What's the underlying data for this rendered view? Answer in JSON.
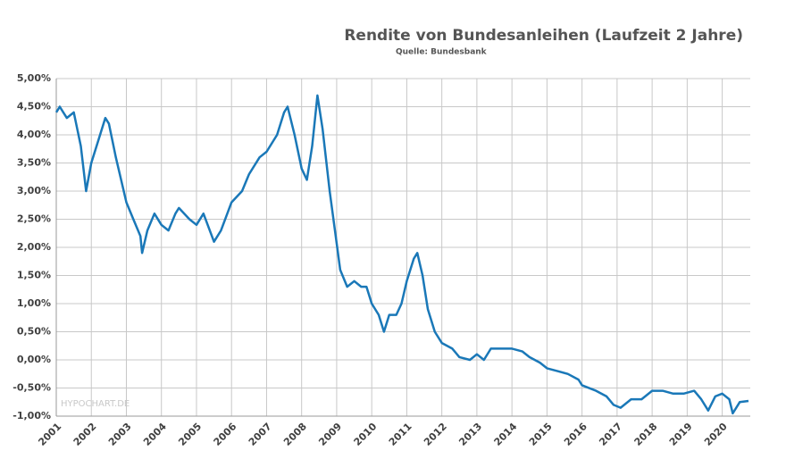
{
  "chart_data": {
    "type": "line",
    "title": "Rendite von Bundesanleihen (Laufzeit 2 Jahre)",
    "subtitle": "Quelle: Bundesbank",
    "watermark": "HYPOCHART.DE",
    "x": [
      2001.0,
      2001.1,
      2001.3,
      2001.5,
      2001.7,
      2001.85,
      2002.0,
      2002.2,
      2002.4,
      2002.5,
      2002.7,
      2002.85,
      2003.0,
      2003.2,
      2003.4,
      2003.45,
      2003.6,
      2003.8,
      2004.0,
      2004.2,
      2004.4,
      2004.5,
      2004.8,
      2005.0,
      2005.2,
      2005.5,
      2005.7,
      2006.0,
      2006.3,
      2006.5,
      2006.8,
      2007.0,
      2007.3,
      2007.5,
      2007.6,
      2007.8,
      2008.0,
      2008.15,
      2008.3,
      2008.45,
      2008.6,
      2008.8,
      2008.95,
      2009.1,
      2009.3,
      2009.5,
      2009.7,
      2009.85,
      2010.0,
      2010.2,
      2010.35,
      2010.5,
      2010.7,
      2010.85,
      2011.0,
      2011.2,
      2011.3,
      2011.45,
      2011.6,
      2011.8,
      2012.0,
      2012.3,
      2012.5,
      2012.8,
      2013.0,
      2013.2,
      2013.4,
      2013.7,
      2014.0,
      2014.3,
      2014.5,
      2014.8,
      2015.0,
      2015.3,
      2015.6,
      2015.9,
      2016.0,
      2016.4,
      2016.7,
      2016.9,
      2017.1,
      2017.4,
      2017.7,
      2018.0,
      2018.3,
      2018.6,
      2018.9,
      2019.2,
      2019.4,
      2019.6,
      2019.8,
      2020.0,
      2020.2,
      2020.3,
      2020.5,
      2020.75
    ],
    "series": [
      {
        "name": "Rendite",
        "color": "#1a78b8",
        "values": [
          4.4,
          4.5,
          4.3,
          4.4,
          3.8,
          3.0,
          3.5,
          3.9,
          4.3,
          4.2,
          3.6,
          3.2,
          2.8,
          2.5,
          2.2,
          1.9,
          2.3,
          2.6,
          2.4,
          2.3,
          2.6,
          2.7,
          2.5,
          2.4,
          2.6,
          2.1,
          2.3,
          2.8,
          3.0,
          3.3,
          3.6,
          3.7,
          4.0,
          4.4,
          4.5,
          4.0,
          3.4,
          3.2,
          3.8,
          4.7,
          4.1,
          3.0,
          2.3,
          1.6,
          1.3,
          1.4,
          1.3,
          1.3,
          1.0,
          0.8,
          0.5,
          0.8,
          0.8,
          1.0,
          1.4,
          1.8,
          1.9,
          1.5,
          0.9,
          0.5,
          0.3,
          0.2,
          0.05,
          0.0,
          0.1,
          0.0,
          0.2,
          0.2,
          0.2,
          0.15,
          0.05,
          -0.05,
          -0.15,
          -0.2,
          -0.25,
          -0.35,
          -0.45,
          -0.55,
          -0.65,
          -0.8,
          -0.85,
          -0.7,
          -0.7,
          -0.55,
          -0.55,
          -0.6,
          -0.6,
          -0.55,
          -0.7,
          -0.9,
          -0.65,
          -0.6,
          -0.7,
          -0.95,
          -0.75,
          -0.73
        ]
      }
    ],
    "xlim": [
      2001,
      2020.8
    ],
    "xticks": [
      2001,
      2002,
      2003,
      2004,
      2005,
      2006,
      2007,
      2008,
      2009,
      2010,
      2011,
      2012,
      2013,
      2014,
      2015,
      2016,
      2017,
      2018,
      2019,
      2020
    ],
    "ylim": [
      -1,
      5
    ],
    "yticks": [
      {
        "value": -1,
        "label": "-1,00%"
      },
      {
        "value": -0.5,
        "label": "-0,50%"
      },
      {
        "value": 0,
        "label": "0,00%"
      },
      {
        "value": 0.5,
        "label": "0,50%"
      },
      {
        "value": 1,
        "label": "1,00%"
      },
      {
        "value": 1.5,
        "label": "1,50%"
      },
      {
        "value": 2,
        "label": "2,00%"
      },
      {
        "value": 2.5,
        "label": "2,50%"
      },
      {
        "value": 3,
        "label": "3,00%"
      },
      {
        "value": 3.5,
        "label": "3,50%"
      },
      {
        "value": 4,
        "label": "4,00%"
      },
      {
        "value": 4.5,
        "label": "4,50%"
      },
      {
        "value": 5,
        "label": "5,00%"
      }
    ],
    "grid": true
  }
}
